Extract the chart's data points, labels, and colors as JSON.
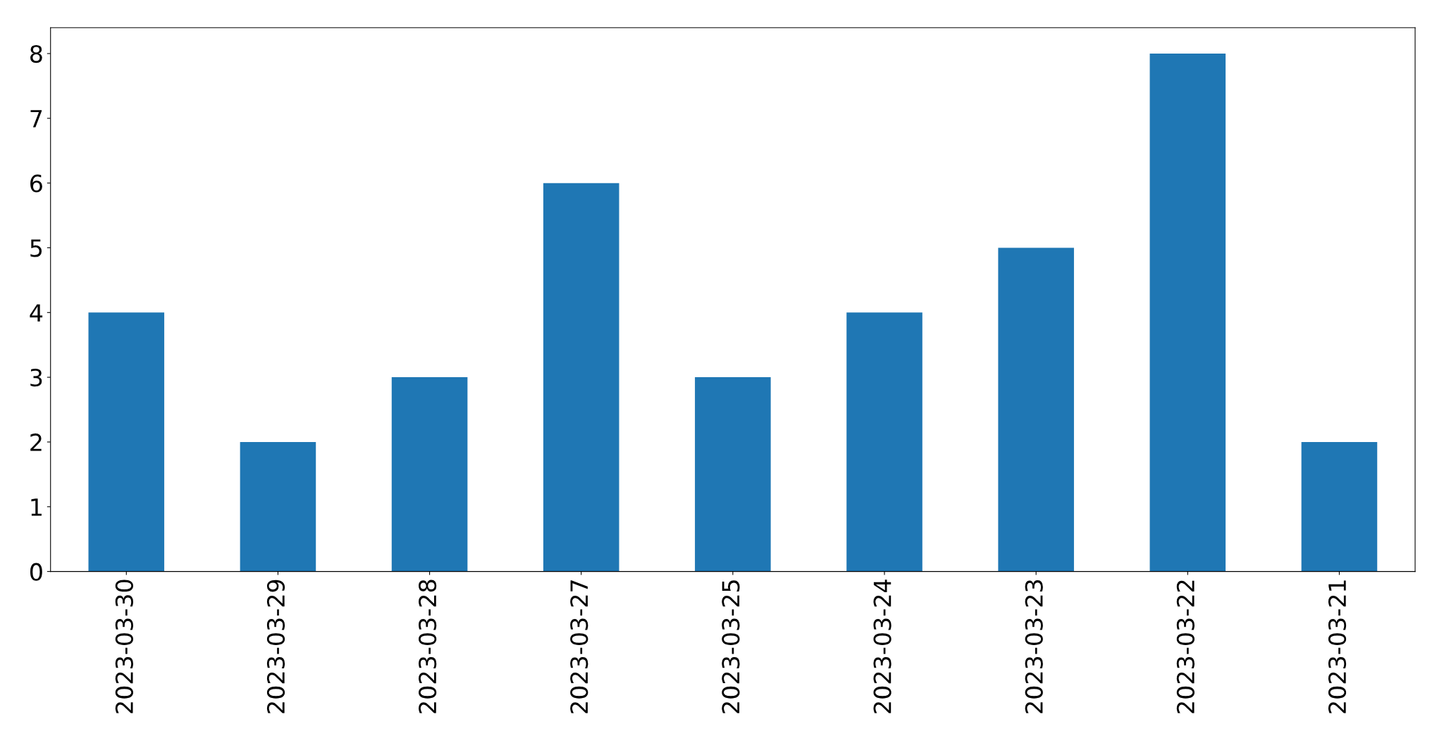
{
  "chart_data": {
    "type": "bar",
    "categories": [
      "2023-03-30",
      "2023-03-29",
      "2023-03-28",
      "2023-03-27",
      "2023-03-25",
      "2023-03-24",
      "2023-03-23",
      "2023-03-22",
      "2023-03-21"
    ],
    "values": [
      4,
      2,
      3,
      6,
      3,
      4,
      5,
      8,
      2
    ],
    "color": "#1f77b4",
    "ylim": [
      0,
      8.4
    ],
    "yticks": [
      0,
      1,
      2,
      3,
      4,
      5,
      6,
      7,
      8
    ],
    "grid": false,
    "legend": false
  }
}
